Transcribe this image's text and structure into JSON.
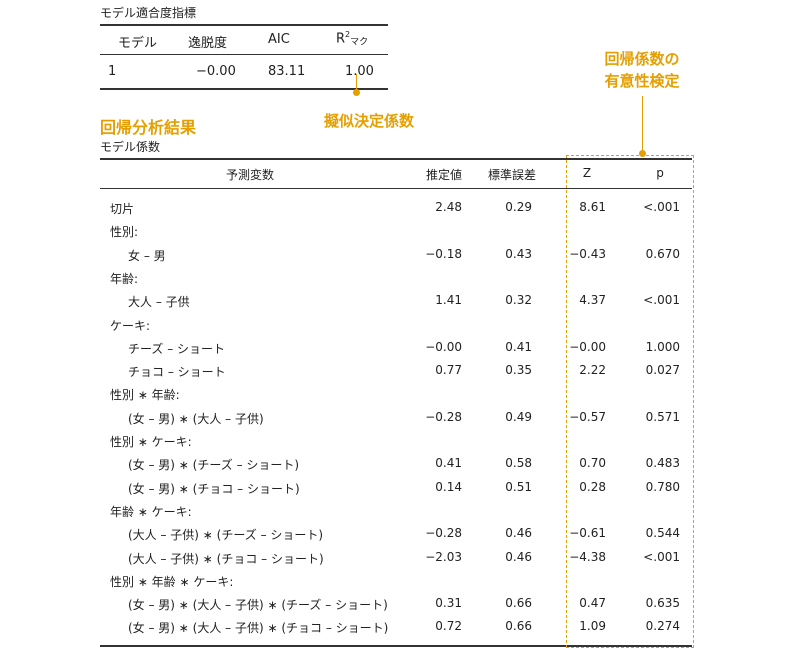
{
  "fit": {
    "title": "モデル適合度指標",
    "headers": {
      "model": "モデル",
      "deviance": "逸脱度",
      "aic": "AIC",
      "r2_base": "R",
      "r2_sup": "2",
      "r2_sub": "マク"
    },
    "row": {
      "model": "1",
      "deviance": "−0.00",
      "aic": "83.11",
      "r2": "1.00"
    }
  },
  "annotations": {
    "r2_label": "擬似決定係数",
    "results_label": "回帰分析結果",
    "test_label_line1": "回帰係数の",
    "test_label_line2": "有意性検定"
  },
  "coef": {
    "title": "モデル係数",
    "headers": {
      "predictor": "予測変数",
      "estimate": "推定値",
      "se": "標準誤差",
      "z": "Z",
      "p": "p"
    },
    "rows": [
      {
        "label": "切片",
        "indent": false,
        "est": "2.48",
        "se": "0.29",
        "z": "8.61",
        "p": "<.001"
      },
      {
        "label": "性別:",
        "indent": false,
        "est": "",
        "se": "",
        "z": "",
        "p": ""
      },
      {
        "label": "女 – 男",
        "indent": true,
        "est": "−0.18",
        "se": "0.43",
        "z": "−0.43",
        "p": "0.670"
      },
      {
        "label": "年齢:",
        "indent": false,
        "est": "",
        "se": "",
        "z": "",
        "p": ""
      },
      {
        "label": "大人 – 子供",
        "indent": true,
        "est": "1.41",
        "se": "0.32",
        "z": "4.37",
        "p": "<.001"
      },
      {
        "label": "ケーキ:",
        "indent": false,
        "est": "",
        "se": "",
        "z": "",
        "p": ""
      },
      {
        "label": "チーズ – ショート",
        "indent": true,
        "est": "−0.00",
        "se": "0.41",
        "z": "−0.00",
        "p": "1.000"
      },
      {
        "label": "チョコ – ショート",
        "indent": true,
        "est": "0.77",
        "se": "0.35",
        "z": "2.22",
        "p": "0.027"
      },
      {
        "label": "性別 ∗ 年齢:",
        "indent": false,
        "est": "",
        "se": "",
        "z": "",
        "p": ""
      },
      {
        "label": "(女 – 男) ∗ (大人 – 子供)",
        "indent": true,
        "est": "−0.28",
        "se": "0.49",
        "z": "−0.57",
        "p": "0.571"
      },
      {
        "label": "性別 ∗ ケーキ:",
        "indent": false,
        "est": "",
        "se": "",
        "z": "",
        "p": ""
      },
      {
        "label": "(女 – 男) ∗ (チーズ – ショート)",
        "indent": true,
        "est": "0.41",
        "se": "0.58",
        "z": "0.70",
        "p": "0.483"
      },
      {
        "label": "(女 – 男) ∗ (チョコ – ショート)",
        "indent": true,
        "est": "0.14",
        "se": "0.51",
        "z": "0.28",
        "p": "0.780"
      },
      {
        "label": "年齢 ∗ ケーキ:",
        "indent": false,
        "est": "",
        "se": "",
        "z": "",
        "p": ""
      },
      {
        "label": "(大人 – 子供) ∗ (チーズ – ショート)",
        "indent": true,
        "est": "−0.28",
        "se": "0.46",
        "z": "−0.61",
        "p": "0.544"
      },
      {
        "label": "(大人 – 子供) ∗ (チョコ – ショート)",
        "indent": true,
        "est": "−2.03",
        "se": "0.46",
        "z": "−4.38",
        "p": "<.001"
      },
      {
        "label": "性別 ∗ 年齢 ∗ ケーキ:",
        "indent": false,
        "est": "",
        "se": "",
        "z": "",
        "p": ""
      },
      {
        "label": "(女 – 男) ∗ (大人 – 子供) ∗ (チーズ – ショート)",
        "indent": true,
        "est": "0.31",
        "se": "0.66",
        "z": "0.47",
        "p": "0.635"
      },
      {
        "label": "(女 – 男) ∗ (大人 – 子供) ∗ (チョコ – ショート)",
        "indent": true,
        "est": "0.72",
        "se": "0.66",
        "z": "1.09",
        "p": "0.274"
      }
    ]
  },
  "colors": {
    "accent": "#E69F00",
    "text": "#222222",
    "rule": "#333333"
  }
}
